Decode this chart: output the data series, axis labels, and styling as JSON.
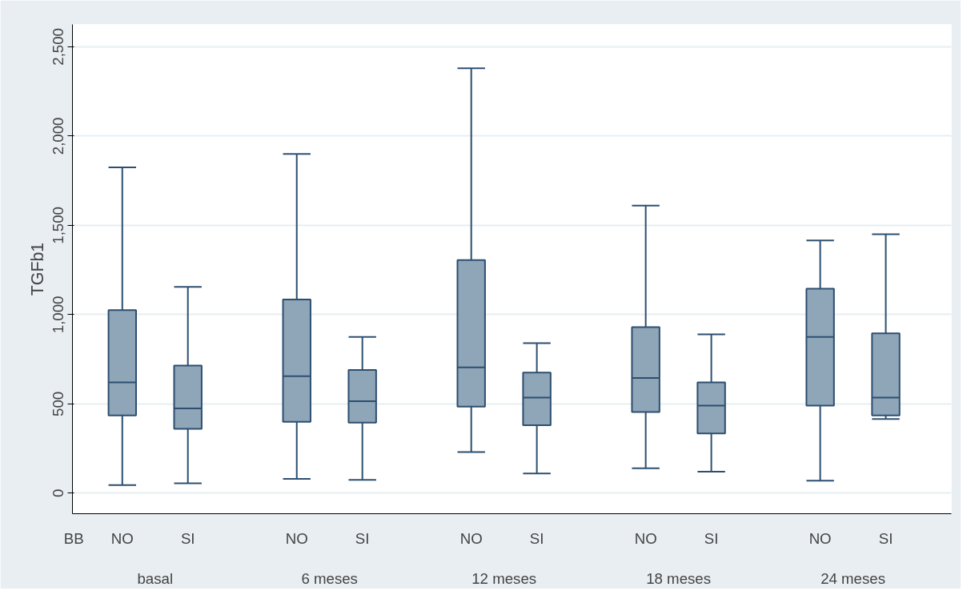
{
  "chart_data": {
    "type": "box",
    "ylabel": "TGFb1",
    "xlabel": "BB",
    "categories": [
      "NO",
      "SI",
      "NO",
      "SI",
      "NO",
      "SI",
      "NO",
      "SI",
      "NO",
      "SI"
    ],
    "annotations": [
      "basal",
      "6 meses",
      "12 meses",
      "18 meses",
      "24 meses"
    ],
    "boxes": [
      {
        "low": 45,
        "q1": 435,
        "median": 620,
        "q3": 1025,
        "high": 1825
      },
      {
        "low": 55,
        "q1": 360,
        "median": 475,
        "q3": 715,
        "high": 1155
      },
      {
        "low": 80,
        "q1": 400,
        "median": 655,
        "q3": 1085,
        "high": 1900
      },
      {
        "low": 75,
        "q1": 395,
        "median": 515,
        "q3": 690,
        "high": 875
      },
      {
        "low": 230,
        "q1": 485,
        "median": 705,
        "q3": 1305,
        "high": 2380
      },
      {
        "low": 110,
        "q1": 380,
        "median": 535,
        "q3": 675,
        "high": 840
      },
      {
        "low": 140,
        "q1": 455,
        "median": 645,
        "q3": 930,
        "high": 1610
      },
      {
        "low": 120,
        "q1": 335,
        "median": 490,
        "q3": 620,
        "high": 890
      },
      {
        "low": 70,
        "q1": 490,
        "median": 875,
        "q3": 1145,
        "high": 1415
      },
      {
        "low": 415,
        "q1": 435,
        "median": 535,
        "q3": 895,
        "high": 1450
      }
    ],
    "color": "#8fa5b8",
    "ylim": [
      -115,
      2625
    ],
    "yticks": [
      0,
      500,
      {
        "value": 1000,
        "label": "1,000"
      },
      {
        "value": 1500,
        "label": "1,500"
      },
      {
        "value": 2000,
        "label": "2,000"
      },
      {
        "value": 2500,
        "label": "2,500"
      }
    ],
    "grid": "y"
  }
}
